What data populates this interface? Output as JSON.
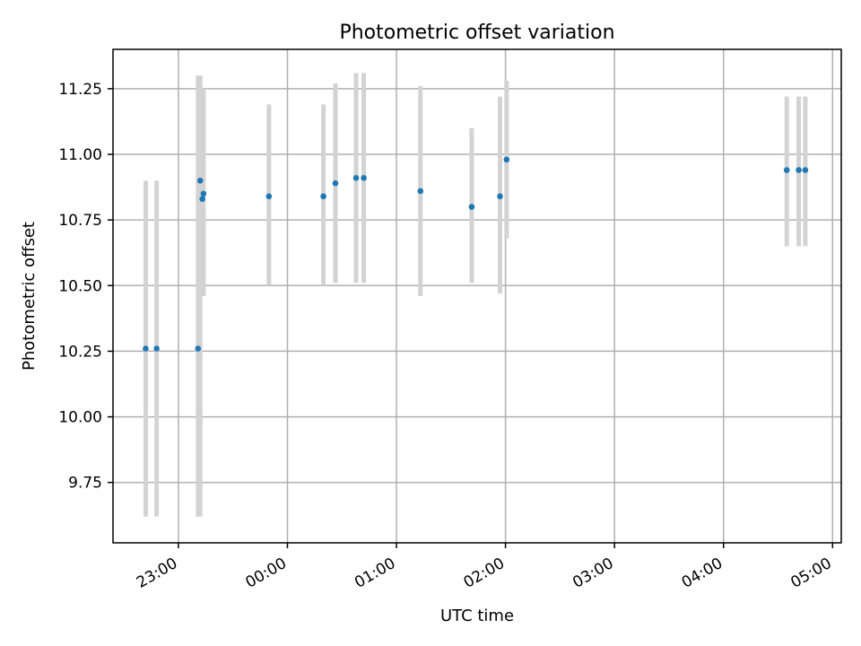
{
  "chart_data": {
    "type": "scatter",
    "title": "Photometric offset variation",
    "xlabel": "UTC time",
    "ylabel": "Photometric offset",
    "x_unit": "hours relative to 00:00 UTC",
    "xlim": [
      -1.6,
      5.08
    ],
    "ylim": [
      9.52,
      11.4
    ],
    "grid": true,
    "x_ticks": [
      {
        "value": -1,
        "label": "23:00"
      },
      {
        "value": 0,
        "label": "00:00"
      },
      {
        "value": 1,
        "label": "01:00"
      },
      {
        "value": 2,
        "label": "02:00"
      },
      {
        "value": 3,
        "label": "03:00"
      },
      {
        "value": 4,
        "label": "04:00"
      },
      {
        "value": 5,
        "label": "05:00"
      }
    ],
    "y_ticks": [
      {
        "value": 9.75,
        "label": "9.75"
      },
      {
        "value": 10.0,
        "label": "10.00"
      },
      {
        "value": 10.25,
        "label": "10.25"
      },
      {
        "value": 10.5,
        "label": "10.50"
      },
      {
        "value": 10.75,
        "label": "10.75"
      },
      {
        "value": 11.0,
        "label": "11.00"
      },
      {
        "value": 11.25,
        "label": "11.25"
      }
    ],
    "point_color": "#1f77b4",
    "errorbar_color": "#d3d3d3",
    "points": [
      {
        "time": "22:40",
        "x": -1.3,
        "y": 10.26,
        "low": 9.62,
        "high": 10.9
      },
      {
        "time": "22:46",
        "x": -1.2,
        "y": 10.26,
        "low": 9.62,
        "high": 10.9
      },
      {
        "time": "23:10",
        "x": -0.82,
        "y": 10.26,
        "low": 9.62,
        "high": 11.3
      },
      {
        "time": "23:11",
        "x": -0.8,
        "y": 10.9,
        "low": 9.62,
        "high": 11.3
      },
      {
        "time": "23:12",
        "x": -0.78,
        "y": 10.83,
        "low": 10.46,
        "high": 11.25
      },
      {
        "time": "23:13",
        "x": -0.77,
        "y": 10.85,
        "low": 10.46,
        "high": 11.25
      },
      {
        "time": "23:50",
        "x": -0.17,
        "y": 10.84,
        "low": 10.5,
        "high": 11.19
      },
      {
        "time": "00:20",
        "x": 0.33,
        "y": 10.84,
        "low": 10.5,
        "high": 11.19
      },
      {
        "time": "00:26",
        "x": 0.44,
        "y": 10.89,
        "low": 10.51,
        "high": 11.27
      },
      {
        "time": "00:38",
        "x": 0.63,
        "y": 10.91,
        "low": 10.51,
        "high": 11.31
      },
      {
        "time": "00:42",
        "x": 0.7,
        "y": 10.91,
        "low": 10.51,
        "high": 11.31
      },
      {
        "time": "01:13",
        "x": 1.22,
        "y": 10.86,
        "low": 10.46,
        "high": 11.26
      },
      {
        "time": "01:41",
        "x": 1.69,
        "y": 10.8,
        "low": 10.51,
        "high": 11.1
      },
      {
        "time": "01:57",
        "x": 1.95,
        "y": 10.84,
        "low": 10.47,
        "high": 11.22
      },
      {
        "time": "02:00",
        "x": 2.01,
        "y": 10.98,
        "low": 10.68,
        "high": 11.28
      },
      {
        "time": "04:35",
        "x": 4.58,
        "y": 10.94,
        "low": 10.65,
        "high": 11.22
      },
      {
        "time": "04:41",
        "x": 4.69,
        "y": 10.94,
        "low": 10.65,
        "high": 11.22
      },
      {
        "time": "04:45",
        "x": 4.75,
        "y": 10.94,
        "low": 10.65,
        "high": 11.22
      }
    ]
  }
}
